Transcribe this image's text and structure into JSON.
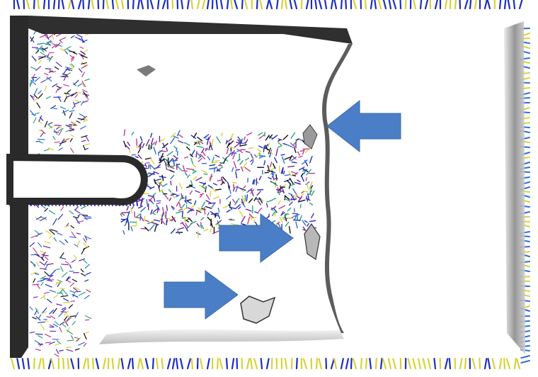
{
  "scene": {
    "description_label": "",
    "background_color": "#ffffff",
    "frame_color": "#1f1f1f",
    "iso_surface_color": "#3a3a3a",
    "vector_colors": [
      "#1e2fbf",
      "#2f6fd6",
      "#d8d23a",
      "#2aa37a",
      "#6a2aa3",
      "#c23a8a",
      "#111111"
    ],
    "arrow_color": "#4a7fc7",
    "arrow_count": 3
  }
}
